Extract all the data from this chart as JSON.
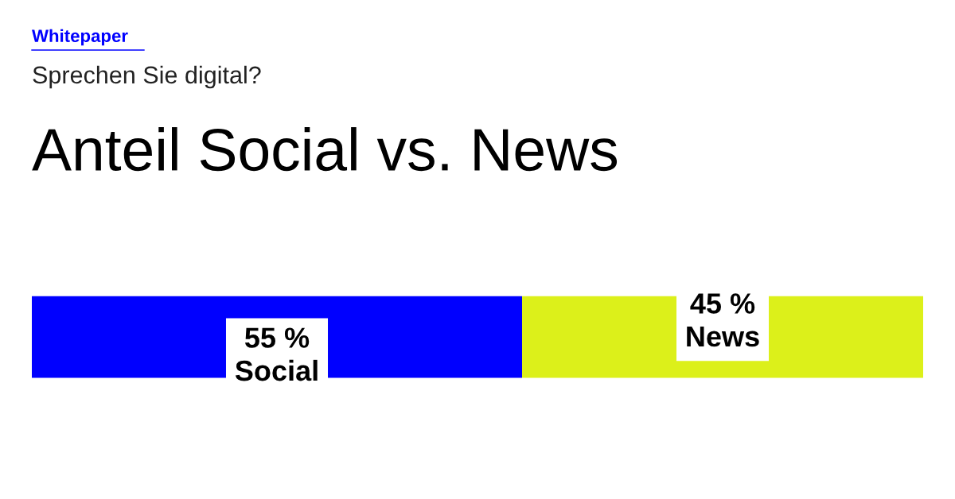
{
  "chart_data": {
    "type": "bar",
    "orientation": "horizontal",
    "stacked": true,
    "title": "Anteil Social vs. News",
    "subtitle": "Sprechen Sie digital?",
    "annotations": [
      "Whitepaper"
    ],
    "categories": [
      null
    ],
    "series": [
      {
        "name": "Social",
        "color": "#0000ff",
        "values": [
          55
        ],
        "value_labels": [
          "55 %"
        ]
      },
      {
        "name": "News",
        "color": "#dcf01a",
        "values": [
          45
        ],
        "value_labels": [
          "45 %"
        ]
      }
    ],
    "tick_labels": false
  }
}
